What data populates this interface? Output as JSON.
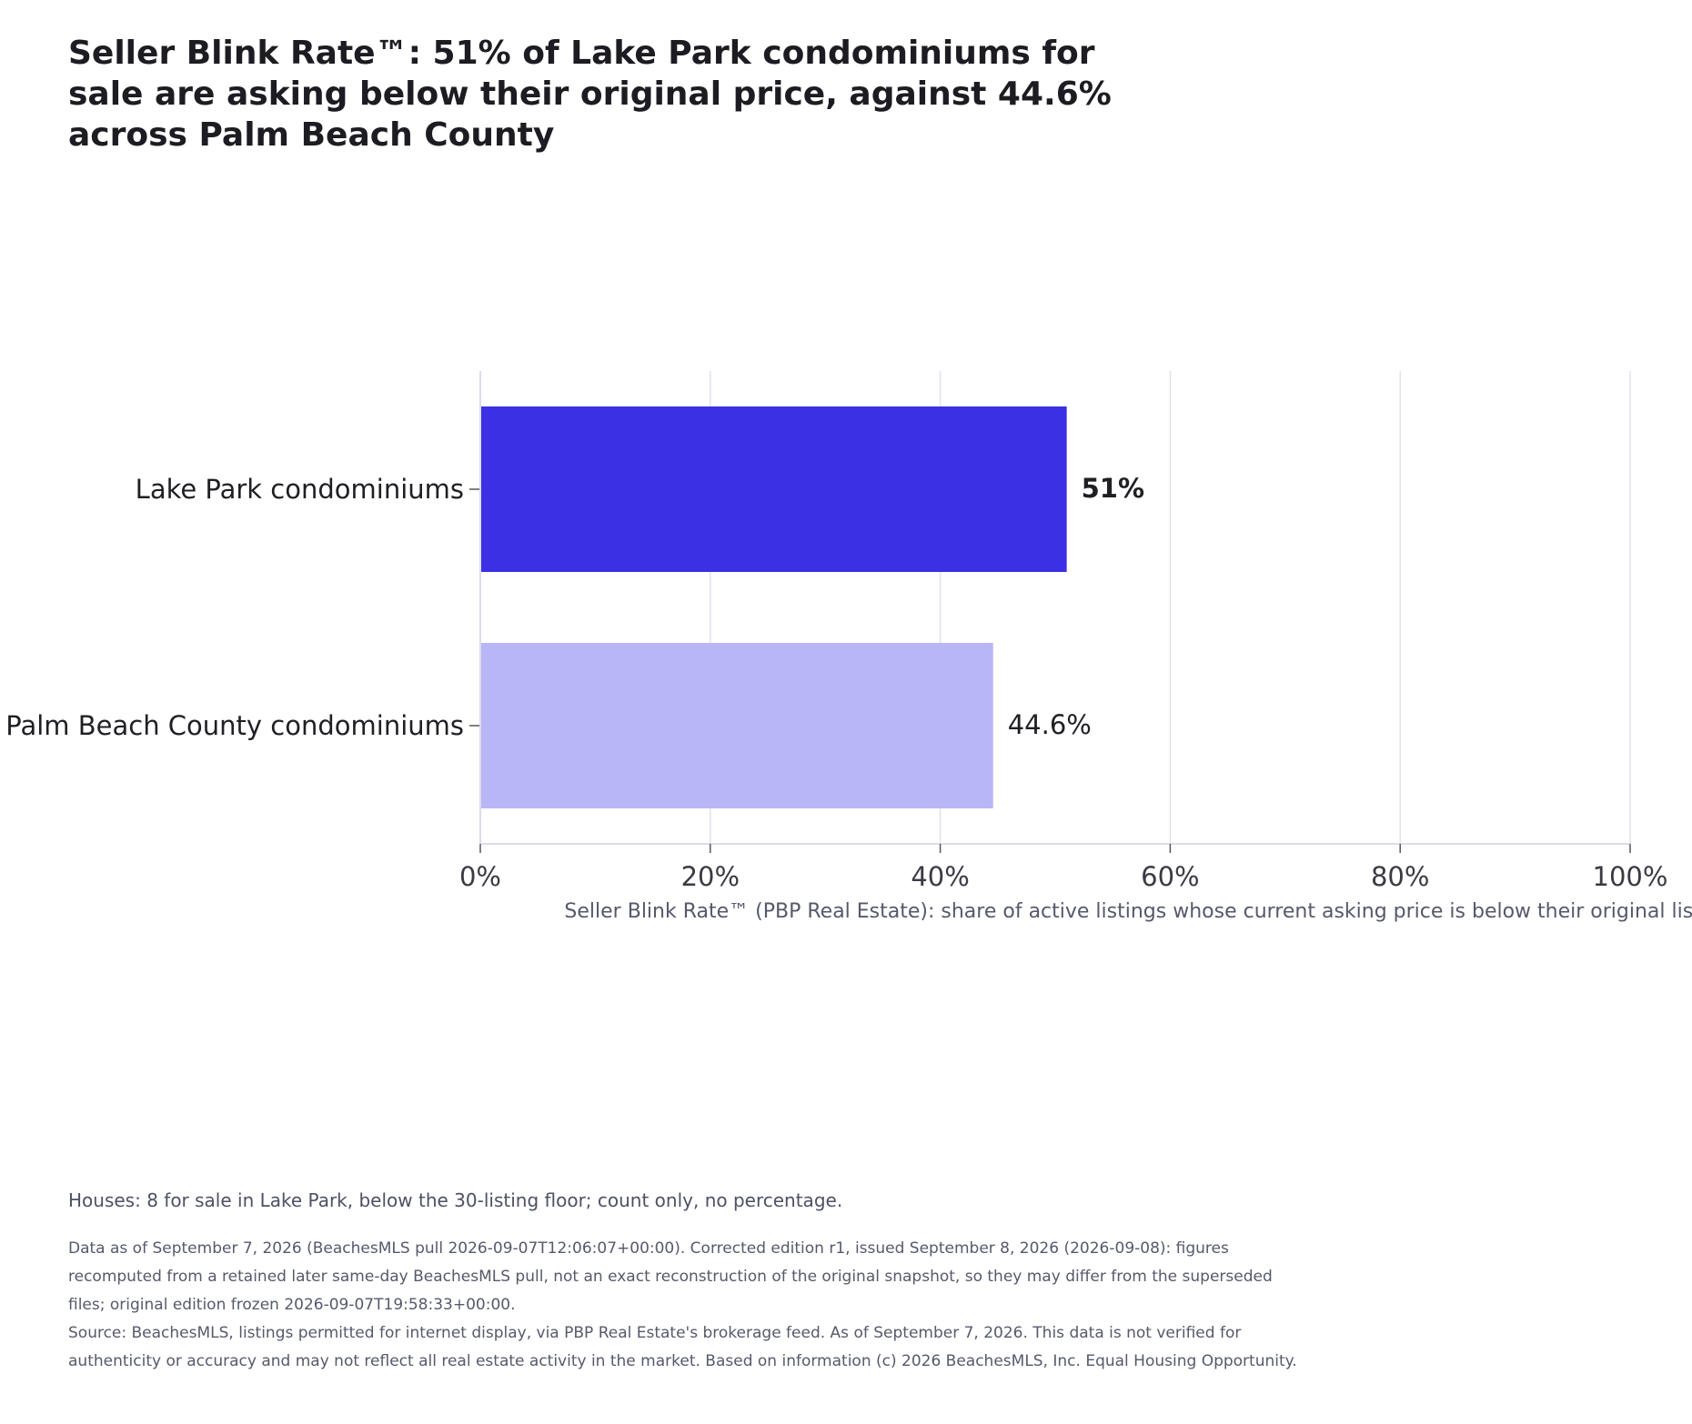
{
  "title": "Seller Blink Rate™: 51% of Lake Park condominiums for sale are asking below their original price, against 44.6% across Palm Beach County",
  "chart_data": {
    "type": "bar",
    "orientation": "horizontal",
    "categories": [
      "Lake Park condominiums",
      "Palm Beach County condominiums"
    ],
    "values": [
      51,
      44.6
    ],
    "data_labels": [
      "51%",
      "44.6%"
    ],
    "bar_colors": [
      "#3b30e3",
      "#b9b6f6"
    ],
    "xlim": [
      0,
      100
    ],
    "xticks": [
      0,
      20,
      40,
      60,
      80,
      100
    ],
    "xtick_labels": [
      "0%",
      "20%",
      "40%",
      "60%",
      "80%",
      "100%"
    ],
    "xlabel": "Seller Blink Rate™ (PBP Real Estate): share of active listings whose current asking price is below their original list price",
    "grid": "vertical",
    "legend": "none"
  },
  "footer": {
    "note": "Houses: 8 for sale in Lake Park, below the 30-listing floor; count only, no percentage.",
    "data_as_of": "Data as of September 7, 2026 (BeachesMLS pull 2026-09-07T12:06:07+00:00). Corrected edition r1, issued September 8, 2026 (2026-09-08): figures recomputed from a retained later same-day BeachesMLS pull, not an exact reconstruction of the original snapshot, so they may differ from the superseded files; original edition frozen 2026-09-07T19:58:33+00:00.",
    "source": "Source: BeachesMLS, listings permitted for internet display, via PBP Real Estate's brokerage feed. As of September 7, 2026. This data is not verified for authenticity or accuracy and may not reflect all real estate activity in the market. Based on information (c) 2026 BeachesMLS, Inc. Equal Housing Opportunity."
  }
}
